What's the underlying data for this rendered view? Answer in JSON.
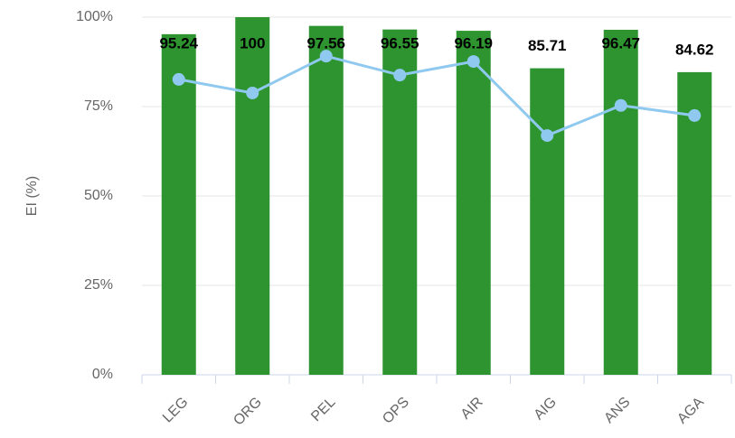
{
  "chart_data": {
    "type": "bar",
    "ylabel": "EI (%)",
    "categories": [
      "LEG",
      "ORG",
      "PEL",
      "OPS",
      "AIR",
      "AIG",
      "ANS",
      "AGA"
    ],
    "values": [
      95.24,
      100,
      97.56,
      96.55,
      96.19,
      85.71,
      96.47,
      84.62
    ],
    "color": "#2e9430",
    "line": {
      "color": "#8fc9ef",
      "values": [
        82.6,
        78.8,
        89.1,
        83.8,
        87.6,
        66.9,
        75.3,
        72.5
      ]
    },
    "ylim": [
      0,
      100
    ],
    "yticks": [
      {
        "value": 0,
        "label": "0%"
      },
      {
        "value": 25,
        "label": "25%"
      },
      {
        "value": 50,
        "label": "50%"
      },
      {
        "value": 75,
        "label": "75%"
      },
      {
        "value": 100,
        "label": "100%"
      }
    ],
    "grid": true
  }
}
